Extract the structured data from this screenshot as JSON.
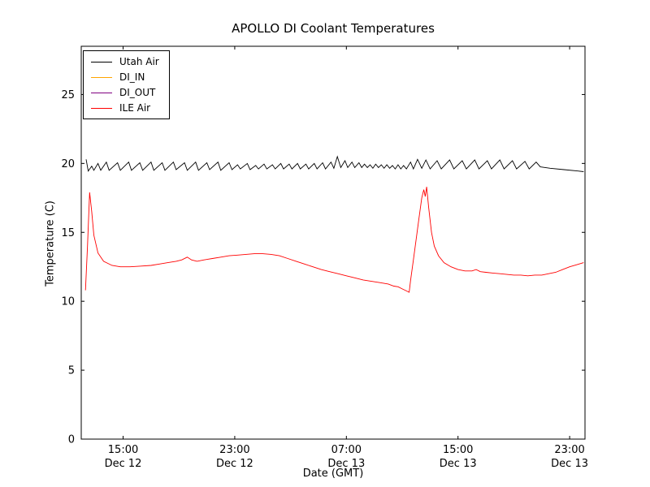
{
  "chart_data": {
    "type": "line",
    "title": "APOLLO DI Coolant Temperatures",
    "xlabel": "Date (GMT)",
    "ylabel": "Temperature (C)",
    "grid": false,
    "legend_position": "upper left",
    "x_unit": "hours since Dec 12 12:00 GMT",
    "xlim": [
      0,
      36.1
    ],
    "ylim": [
      0,
      28.5
    ],
    "yticks": [
      0,
      5,
      10,
      15,
      20,
      25
    ],
    "xticks": [
      {
        "t": 3,
        "label": [
          "15:00",
          "Dec 12"
        ]
      },
      {
        "t": 11,
        "label": [
          "23:00",
          "Dec 12"
        ]
      },
      {
        "t": 19,
        "label": [
          "07:00",
          "Dec 13"
        ]
      },
      {
        "t": 27,
        "label": [
          "15:00",
          "Dec 13"
        ]
      },
      {
        "t": 35,
        "label": [
          "23:00",
          "Dec 13"
        ]
      }
    ],
    "series": [
      {
        "name": "Utah Air",
        "color": "#000000",
        "points": [
          [
            0.35,
            20.3
          ],
          [
            0.5,
            19.45
          ],
          [
            0.75,
            19.8
          ],
          [
            0.9,
            19.5
          ],
          [
            1.2,
            20.0
          ],
          [
            1.4,
            19.5
          ],
          [
            1.8,
            20.1
          ],
          [
            2.0,
            19.5
          ],
          [
            2.6,
            20.05
          ],
          [
            2.8,
            19.5
          ],
          [
            3.4,
            20.1
          ],
          [
            3.6,
            19.5
          ],
          [
            4.2,
            20.05
          ],
          [
            4.4,
            19.5
          ],
          [
            5.0,
            20.1
          ],
          [
            5.2,
            19.5
          ],
          [
            5.8,
            20.05
          ],
          [
            6.0,
            19.5
          ],
          [
            6.6,
            20.1
          ],
          [
            6.8,
            19.55
          ],
          [
            7.4,
            20.05
          ],
          [
            7.6,
            19.5
          ],
          [
            8.2,
            20.1
          ],
          [
            8.4,
            19.5
          ],
          [
            9.0,
            20.05
          ],
          [
            9.2,
            19.55
          ],
          [
            9.8,
            20.1
          ],
          [
            10.0,
            19.5
          ],
          [
            10.6,
            20.05
          ],
          [
            10.8,
            19.55
          ],
          [
            11.2,
            19.9
          ],
          [
            11.4,
            19.6
          ],
          [
            11.9,
            20.0
          ],
          [
            12.1,
            19.55
          ],
          [
            12.5,
            19.85
          ],
          [
            12.7,
            19.6
          ],
          [
            13.1,
            19.95
          ],
          [
            13.3,
            19.6
          ],
          [
            13.7,
            19.9
          ],
          [
            13.9,
            19.6
          ],
          [
            14.3,
            20.0
          ],
          [
            14.5,
            19.6
          ],
          [
            14.9,
            19.95
          ],
          [
            15.1,
            19.6
          ],
          [
            15.5,
            20.0
          ],
          [
            15.7,
            19.6
          ],
          [
            16.1,
            19.95
          ],
          [
            16.3,
            19.6
          ],
          [
            16.7,
            20.0
          ],
          [
            16.9,
            19.6
          ],
          [
            17.3,
            20.05
          ],
          [
            17.5,
            19.6
          ],
          [
            17.9,
            20.1
          ],
          [
            18.1,
            19.65
          ],
          [
            18.35,
            20.5
          ],
          [
            18.6,
            19.7
          ],
          [
            18.9,
            20.2
          ],
          [
            19.1,
            19.7
          ],
          [
            19.4,
            20.1
          ],
          [
            19.6,
            19.7
          ],
          [
            19.9,
            20.05
          ],
          [
            20.1,
            19.7
          ],
          [
            20.3,
            19.95
          ],
          [
            20.5,
            19.7
          ],
          [
            20.7,
            19.9
          ],
          [
            20.9,
            19.65
          ],
          [
            21.1,
            19.95
          ],
          [
            21.3,
            19.7
          ],
          [
            21.5,
            19.9
          ],
          [
            21.7,
            19.65
          ],
          [
            21.9,
            19.9
          ],
          [
            22.1,
            19.65
          ],
          [
            22.3,
            19.85
          ],
          [
            22.5,
            19.6
          ],
          [
            22.7,
            19.9
          ],
          [
            22.9,
            19.6
          ],
          [
            23.1,
            19.85
          ],
          [
            23.3,
            19.6
          ],
          [
            23.6,
            20.1
          ],
          [
            23.8,
            19.6
          ],
          [
            24.1,
            20.3
          ],
          [
            24.4,
            19.65
          ],
          [
            24.7,
            20.25
          ],
          [
            25.0,
            19.6
          ],
          [
            25.5,
            20.2
          ],
          [
            25.8,
            19.6
          ],
          [
            26.4,
            20.25
          ],
          [
            26.7,
            19.6
          ],
          [
            27.3,
            20.2
          ],
          [
            27.6,
            19.6
          ],
          [
            28.2,
            20.25
          ],
          [
            28.5,
            19.6
          ],
          [
            29.1,
            20.2
          ],
          [
            29.4,
            19.6
          ],
          [
            30.0,
            20.25
          ],
          [
            30.3,
            19.6
          ],
          [
            30.9,
            20.2
          ],
          [
            31.2,
            19.6
          ],
          [
            31.8,
            20.15
          ],
          [
            32.1,
            19.6
          ],
          [
            32.6,
            20.1
          ],
          [
            32.9,
            19.75
          ],
          [
            33.6,
            19.65
          ],
          [
            34.6,
            19.55
          ],
          [
            35.6,
            19.45
          ],
          [
            36.0,
            19.4
          ]
        ]
      },
      {
        "name": "DI_IN",
        "color": "#ffa500",
        "points": []
      },
      {
        "name": "DI_OUT",
        "color": "#800080",
        "points": []
      },
      {
        "name": "ILE Air",
        "color": "#ff0000",
        "points": [
          [
            0.3,
            10.8
          ],
          [
            0.45,
            14.0
          ],
          [
            0.6,
            17.9
          ],
          [
            0.75,
            16.5
          ],
          [
            0.9,
            14.8
          ],
          [
            1.2,
            13.5
          ],
          [
            1.6,
            12.9
          ],
          [
            2.2,
            12.6
          ],
          [
            2.8,
            12.5
          ],
          [
            3.5,
            12.5
          ],
          [
            4.2,
            12.55
          ],
          [
            5.0,
            12.6
          ],
          [
            5.6,
            12.7
          ],
          [
            6.2,
            12.8
          ],
          [
            6.8,
            12.9
          ],
          [
            7.2,
            13.0
          ],
          [
            7.6,
            13.2
          ],
          [
            7.9,
            13.0
          ],
          [
            8.3,
            12.9
          ],
          [
            8.8,
            13.0
          ],
          [
            9.4,
            13.1
          ],
          [
            10.0,
            13.2
          ],
          [
            10.6,
            13.3
          ],
          [
            11.2,
            13.35
          ],
          [
            11.8,
            13.4
          ],
          [
            12.4,
            13.45
          ],
          [
            13.0,
            13.45
          ],
          [
            13.6,
            13.4
          ],
          [
            14.2,
            13.3
          ],
          [
            14.8,
            13.1
          ],
          [
            15.4,
            12.9
          ],
          [
            16.0,
            12.7
          ],
          [
            16.6,
            12.5
          ],
          [
            17.2,
            12.3
          ],
          [
            17.8,
            12.15
          ],
          [
            18.4,
            12.0
          ],
          [
            19.0,
            11.85
          ],
          [
            19.6,
            11.7
          ],
          [
            20.2,
            11.55
          ],
          [
            20.8,
            11.45
          ],
          [
            21.4,
            11.35
          ],
          [
            22.0,
            11.25
          ],
          [
            22.4,
            11.1
          ],
          [
            22.7,
            11.05
          ],
          [
            23.0,
            10.9
          ],
          [
            23.3,
            10.75
          ],
          [
            23.5,
            10.65
          ],
          [
            23.6,
            11.5
          ],
          [
            23.8,
            13.0
          ],
          [
            24.0,
            14.5
          ],
          [
            24.2,
            16.0
          ],
          [
            24.4,
            17.5
          ],
          [
            24.55,
            18.1
          ],
          [
            24.65,
            17.6
          ],
          [
            24.75,
            18.3
          ],
          [
            24.9,
            16.8
          ],
          [
            25.1,
            15.0
          ],
          [
            25.3,
            14.0
          ],
          [
            25.6,
            13.3
          ],
          [
            26.0,
            12.8
          ],
          [
            26.5,
            12.5
          ],
          [
            27.0,
            12.3
          ],
          [
            27.5,
            12.2
          ],
          [
            28.0,
            12.2
          ],
          [
            28.3,
            12.3
          ],
          [
            28.6,
            12.15
          ],
          [
            29.0,
            12.1
          ],
          [
            29.5,
            12.05
          ],
          [
            30.0,
            12.0
          ],
          [
            30.5,
            11.95
          ],
          [
            31.0,
            11.9
          ],
          [
            31.5,
            11.9
          ],
          [
            32.0,
            11.85
          ],
          [
            32.5,
            11.9
          ],
          [
            33.0,
            11.9
          ],
          [
            33.5,
            12.0
          ],
          [
            34.0,
            12.1
          ],
          [
            34.5,
            12.3
          ],
          [
            35.0,
            12.5
          ],
          [
            35.5,
            12.65
          ],
          [
            36.0,
            12.8
          ]
        ]
      }
    ]
  }
}
